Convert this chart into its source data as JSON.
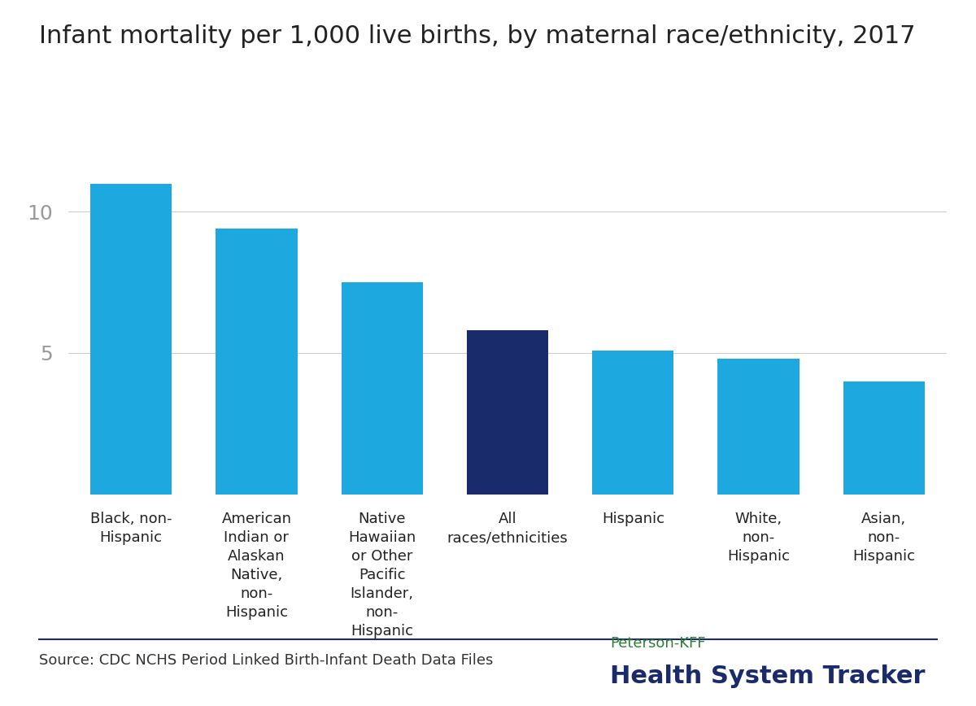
{
  "title": "Infant mortality per 1,000 live births, by maternal race/ethnicity, 2017",
  "categories": [
    "Black, non-\nHispanic",
    "American\nIndian or\nAlaskan\nNative,\nnon-\nHispanic",
    "Native\nHawaiian\nor Other\nPacific\nIslander,\nnon-\nHispanic",
    "All\nraces/ethnicities",
    "Hispanic",
    "White,\nnon-\nHispanic",
    "Asian,\nnon-\nHispanic"
  ],
  "values": [
    11.0,
    9.4,
    7.5,
    5.8,
    5.1,
    4.8,
    4.0
  ],
  "bar_colors": [
    "#1da8e0",
    "#1da8e0",
    "#1da8e0",
    "#1a2b6b",
    "#1da8e0",
    "#1da8e0",
    "#1da8e0"
  ],
  "yticks": [
    5,
    10
  ],
  "ylim": [
    0,
    13
  ],
  "source_text": "Source: CDC NCHS Period Linked Birth-Infant Death Data Files",
  "logo_line1": "Peterson-KFF",
  "logo_line2": "Health System Tracker",
  "bg_color": "#ffffff",
  "title_color": "#222222",
  "tick_color": "#999999",
  "source_color": "#333333",
  "logo_color1": "#2e7d32",
  "logo_color2": "#1a2b6b",
  "separator_color": "#1a2b6b",
  "title_fontsize": 22,
  "label_fontsize": 13,
  "source_fontsize": 13,
  "logo_fontsize1": 13,
  "logo_fontsize2": 22,
  "ytick_fontsize": 18
}
